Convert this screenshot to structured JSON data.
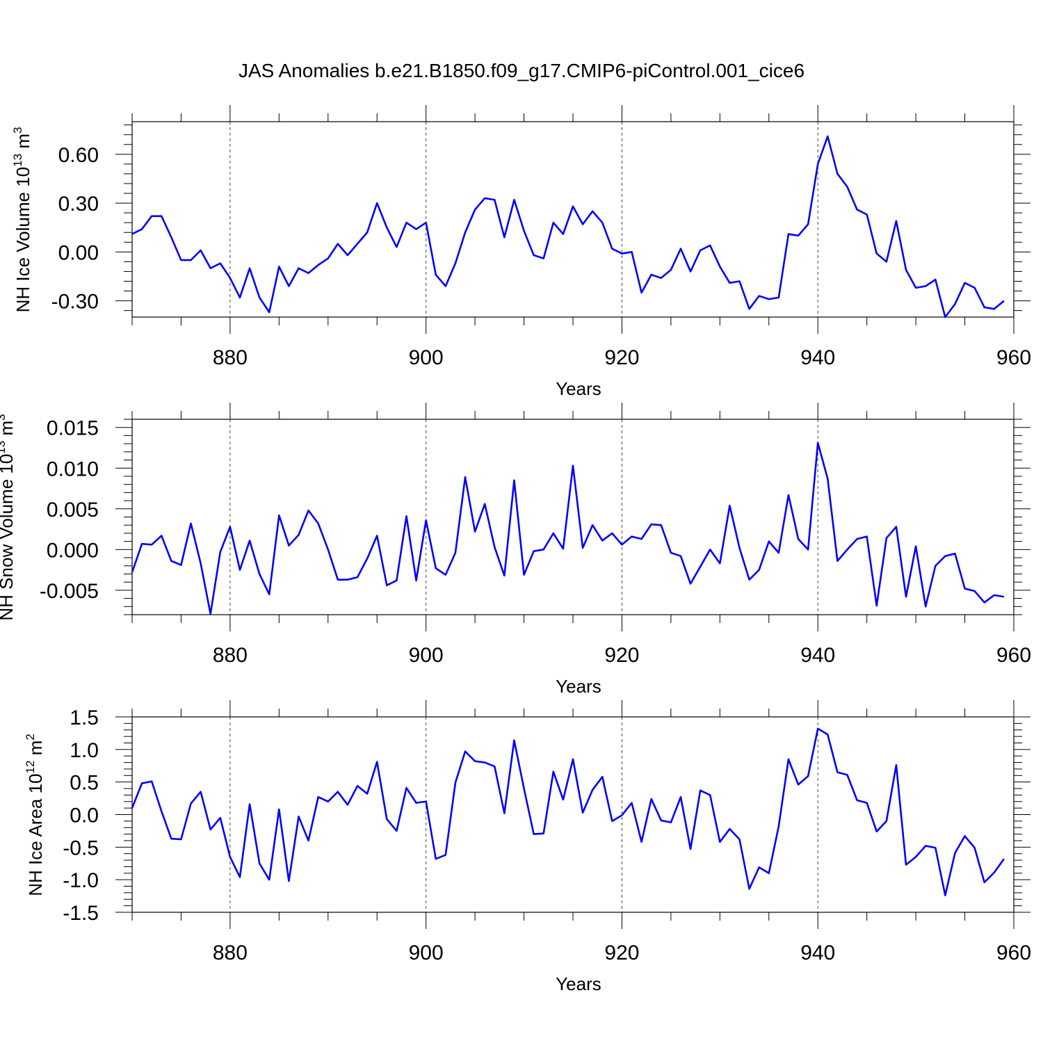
{
  "figure": {
    "title": "JAS Anomalies b.e21.B1850.f09_g17.CMIP6-piControl.001_cice6"
  },
  "chart_data": [
    {
      "type": "line",
      "id": "ice-volume",
      "xlabel": "Years",
      "ylabel": "NH Ice Volume 10",
      "ylabel_exp": "13",
      "ylabel_unit": "m",
      "ylabel_unit_exp": "3",
      "xlim": [
        870,
        960
      ],
      "ylim": [
        -0.4,
        0.8
      ],
      "xticks": [
        880,
        900,
        920,
        940,
        960
      ],
      "xtick_labels": [
        "880",
        "900",
        "920",
        "940",
        "960"
      ],
      "yticks": [
        0.6,
        0.3,
        0.0,
        -0.3
      ],
      "ytick_labels": [
        "0.60",
        "0.30",
        "0.00",
        "-0.30"
      ],
      "line_color": "#0000ff",
      "grid": "vertical dashed at major x ticks",
      "x_start": 870,
      "series": [
        {
          "values": [
            0.11,
            0.14,
            0.22,
            0.22,
            0.09,
            -0.05,
            -0.05,
            0.01,
            -0.1,
            -0.07,
            -0.16,
            -0.28,
            -0.1,
            -0.28,
            -0.37,
            -0.09,
            -0.21,
            -0.1,
            -0.13,
            -0.08,
            -0.04,
            0.05,
            -0.02,
            0.05,
            0.12,
            0.3,
            0.15,
            0.03,
            0.18,
            0.14,
            0.18,
            -0.14,
            -0.21,
            -0.07,
            0.12,
            0.26,
            0.33,
            0.32,
            0.09,
            0.32,
            0.13,
            -0.02,
            -0.04,
            0.18,
            0.11,
            0.28,
            0.17,
            0.25,
            0.18,
            0.02,
            -0.01,
            0.0,
            -0.25,
            -0.14,
            -0.16,
            -0.11,
            0.02,
            -0.12,
            0.01,
            0.04,
            -0.09,
            -0.19,
            -0.18,
            -0.35,
            -0.27,
            -0.29,
            -0.28,
            0.11,
            0.1,
            0.17,
            0.54,
            0.71,
            0.48,
            0.4,
            0.26,
            0.23,
            -0.01,
            -0.06,
            0.19,
            -0.11,
            -0.22,
            -0.21,
            -0.17,
            -0.4,
            -0.32,
            -0.19,
            -0.22,
            -0.34,
            -0.35,
            -0.3
          ]
        }
      ]
    },
    {
      "type": "line",
      "id": "snow-volume",
      "xlabel": "Years",
      "ylabel": "NH Snow Volume 10",
      "ylabel_exp": "13",
      "ylabel_unit": "m",
      "ylabel_unit_exp": "3",
      "xlim": [
        870,
        960
      ],
      "ylim": [
        -0.008,
        0.016
      ],
      "xticks": [
        880,
        900,
        920,
        940,
        960
      ],
      "xtick_labels": [
        "880",
        "900",
        "920",
        "940",
        "960"
      ],
      "yticks": [
        0.015,
        0.01,
        0.005,
        0.0,
        -0.005
      ],
      "ytick_labels": [
        "0.015",
        "0.010",
        "0.005",
        "0.000",
        "-0.005"
      ],
      "line_color": "#0000ff",
      "grid": "vertical dashed at major x ticks",
      "x_start": 870,
      "series": [
        {
          "values": [
            -0.0028,
            0.0007,
            0.0006,
            0.0017,
            -0.0014,
            -0.0019,
            0.0032,
            -0.0017,
            -0.0079,
            -0.0003,
            0.0028,
            -0.0025,
            0.0011,
            -0.003,
            -0.0055,
            0.0042,
            0.0005,
            0.0018,
            0.0048,
            0.0032,
            0.0,
            -0.0037,
            -0.0037,
            -0.0034,
            -0.0011,
            0.0017,
            -0.0044,
            -0.0038,
            0.0041,
            -0.0038,
            0.0036,
            -0.0023,
            -0.0031,
            -0.0004,
            0.0089,
            0.0022,
            0.0056,
            0.0003,
            -0.0032,
            0.0085,
            -0.0031,
            -0.0002,
            0.0,
            0.002,
            0.0001,
            0.0103,
            0.0002,
            0.003,
            0.0011,
            0.002,
            0.0006,
            0.0016,
            0.0013,
            0.0031,
            0.003,
            -0.0004,
            -0.0008,
            -0.0042,
            -0.0021,
            0.0,
            -0.0017,
            0.0054,
            0.0002,
            -0.0037,
            -0.0025,
            0.001,
            -0.0004,
            0.0067,
            0.0013,
            0.0,
            0.0131,
            0.0087,
            -0.0014,
            0.0,
            0.0013,
            0.0016,
            -0.0069,
            0.0014,
            0.0028,
            -0.0058,
            0.0004,
            -0.007,
            -0.002,
            -0.0008,
            -0.0005,
            -0.0048,
            -0.0051,
            -0.0065,
            -0.0056,
            -0.0058
          ]
        }
      ]
    },
    {
      "type": "line",
      "id": "ice-area",
      "xlabel": "Years",
      "ylabel": "NH Ice Area 10",
      "ylabel_exp": "12",
      "ylabel_unit": "m",
      "ylabel_unit_exp": "2",
      "xlim": [
        870,
        960
      ],
      "ylim": [
        -1.5,
        1.5
      ],
      "xticks": [
        880,
        900,
        920,
        940,
        960
      ],
      "xtick_labels": [
        "880",
        "900",
        "920",
        "940",
        "960"
      ],
      "yticks": [
        1.5,
        1.0,
        0.5,
        0.0,
        -0.5,
        -1.0,
        -1.5
      ],
      "ytick_labels": [
        "1.5",
        "1.0",
        "0.5",
        "0.0",
        "-0.5",
        "-1.0",
        "-1.5"
      ],
      "line_color": "#0000ff",
      "grid": "vertical dashed at major x ticks",
      "x_start": 870,
      "series": [
        {
          "values": [
            0.1,
            0.48,
            0.51,
            0.05,
            -0.37,
            -0.38,
            0.17,
            0.35,
            -0.23,
            -0.05,
            -0.65,
            -0.96,
            0.16,
            -0.75,
            -1.0,
            0.08,
            -1.02,
            -0.03,
            -0.4,
            0.27,
            0.2,
            0.35,
            0.15,
            0.44,
            0.32,
            0.81,
            -0.07,
            -0.25,
            0.41,
            0.18,
            0.2,
            -0.68,
            -0.62,
            0.49,
            0.97,
            0.82,
            0.8,
            0.74,
            0.02,
            1.14,
            0.4,
            -0.3,
            -0.29,
            0.66,
            0.23,
            0.85,
            0.03,
            0.38,
            0.58,
            -0.1,
            -0.01,
            0.18,
            -0.42,
            0.24,
            -0.09,
            -0.12,
            0.27,
            -0.53,
            0.37,
            0.3,
            -0.42,
            -0.22,
            -0.38,
            -1.14,
            -0.81,
            -0.9,
            -0.18,
            0.85,
            0.46,
            0.59,
            1.32,
            1.23,
            0.65,
            0.61,
            0.22,
            0.18,
            -0.26,
            -0.1,
            0.76,
            -0.77,
            -0.65,
            -0.48,
            -0.51,
            -1.24,
            -0.59,
            -0.33,
            -0.51,
            -1.04,
            -0.89,
            -0.68
          ]
        }
      ]
    }
  ]
}
